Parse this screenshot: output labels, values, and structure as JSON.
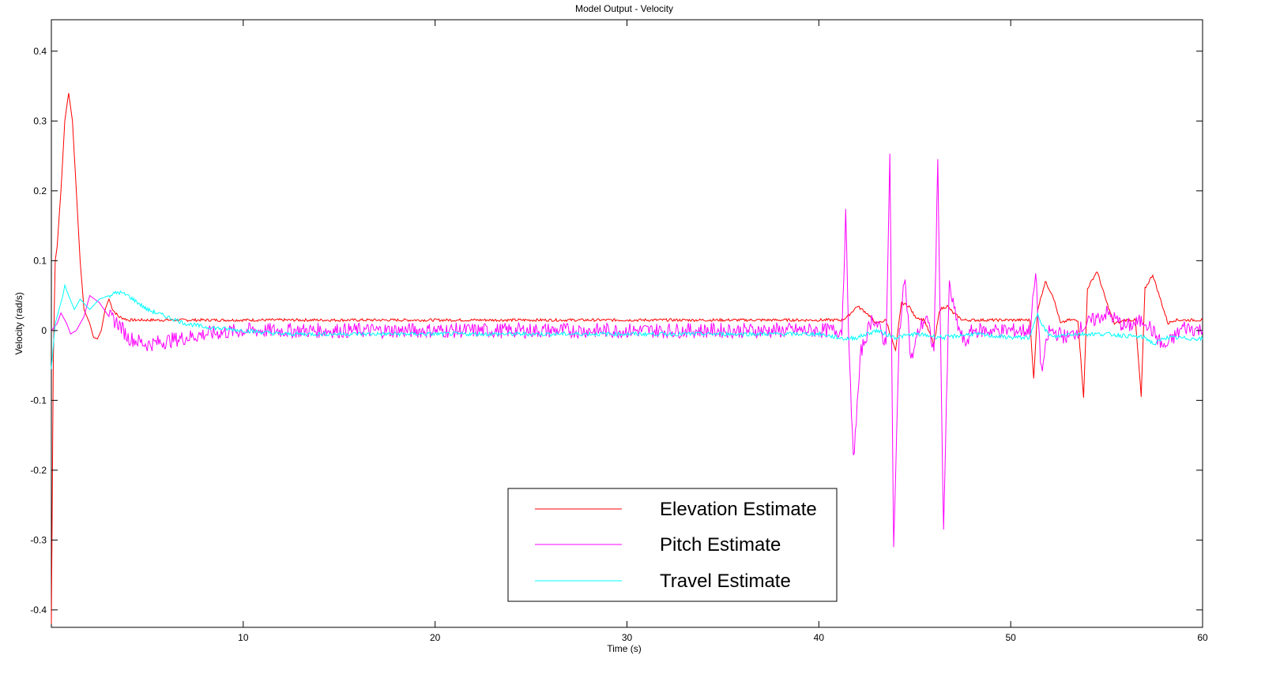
{
  "chart_data": {
    "type": "line",
    "title": "Model Output - Velocity",
    "xlabel": "Time (s)",
    "ylabel": "Velocity (rad/s)",
    "xlim": [
      0,
      60
    ],
    "ylim": [
      -0.425,
      0.445
    ],
    "xticks": [
      10,
      20,
      30,
      40,
      50,
      60
    ],
    "xtick_labels": [
      "10",
      "20",
      "30",
      "40",
      "50",
      "60"
    ],
    "yticks": [
      0.4,
      0.3,
      0.2,
      0.1,
      0,
      -0.1,
      -0.2,
      -0.3,
      -0.4
    ],
    "ytick_labels": [
      "0.4",
      "0.3",
      "0.2",
      "0.1",
      "0",
      "-0.1",
      "-0.2",
      "-0.3",
      "-0.4"
    ],
    "grid": false,
    "legend_position": "bottom-center",
    "series": [
      {
        "name": "Elevation Estimate",
        "color": "#ff0000",
        "x": [
          0,
          0.1,
          0.2,
          0.3,
          0.5,
          0.7,
          0.9,
          1.1,
          1.3,
          1.5,
          1.7,
          2.0,
          2.2,
          2.4,
          2.6,
          2.8,
          3.0,
          3.2,
          3.5,
          4.0,
          5.0,
          6.0,
          10.0,
          20.0,
          30.0,
          40.0,
          41.2,
          41.5,
          42.0,
          42.5,
          43.0,
          43.5,
          44.0,
          44.3,
          44.7,
          45.0,
          45.5,
          46.0,
          46.3,
          46.7,
          47.0,
          47.5,
          48.0,
          49.0,
          50.0,
          51.0,
          51.2,
          51.4,
          51.8,
          52.2,
          52.6,
          53.0,
          53.5,
          53.8,
          54.0,
          54.5,
          55.0,
          55.4,
          56.0,
          56.5,
          56.8,
          57.0,
          57.4,
          57.8,
          58.2,
          58.5,
          59.0,
          60.0
        ],
        "values": [
          -0.42,
          -0.05,
          0.1,
          0.12,
          0.2,
          0.3,
          0.34,
          0.3,
          0.2,
          0.1,
          0.03,
          0.01,
          -0.01,
          -0.012,
          0.0,
          0.03,
          0.045,
          0.03,
          0.02,
          0.015,
          0.015,
          0.015,
          0.015,
          0.015,
          0.015,
          0.015,
          0.015,
          0.02,
          0.035,
          0.025,
          0.01,
          0.015,
          -0.03,
          0.04,
          0.035,
          0.02,
          0.015,
          -0.02,
          0.03,
          0.035,
          0.025,
          0.015,
          0.015,
          0.015,
          0.015,
          0.015,
          -0.07,
          0.03,
          0.07,
          0.05,
          0.01,
          0.015,
          0.015,
          -0.095,
          0.06,
          0.085,
          0.04,
          0.01,
          0.015,
          0.015,
          -0.095,
          0.06,
          0.08,
          0.045,
          0.01,
          0.015,
          0.015,
          0.015
        ]
      },
      {
        "name": "Pitch Estimate",
        "color": "#ff00ff",
        "x": [
          0,
          0.3,
          0.5,
          0.8,
          1.0,
          1.3,
          1.7,
          2.0,
          2.5,
          3.0,
          3.5,
          4.0,
          5.0,
          6.0,
          7.0,
          8.0,
          10.0,
          15.0,
          20.0,
          25.0,
          30.0,
          35.0,
          40.0,
          41.2,
          41.4,
          41.6,
          41.8,
          42.2,
          42.8,
          43.2,
          43.5,
          43.7,
          43.9,
          44.2,
          44.5,
          44.8,
          45.2,
          45.6,
          46.0,
          46.2,
          46.5,
          46.8,
          47.2,
          47.6,
          48.0,
          49.0,
          50.0,
          51.0,
          51.3,
          51.6,
          52.0,
          53.0,
          54.0,
          55.0,
          56.0,
          57.0,
          58.0,
          59.0,
          60.0
        ],
        "values": [
          0.0,
          0.01,
          0.025,
          0.01,
          -0.005,
          0.0,
          0.02,
          0.05,
          0.04,
          0.02,
          0.01,
          -0.01,
          -0.02,
          -0.015,
          -0.01,
          -0.005,
          0.0,
          0.0,
          0.0,
          0.0,
          0.0,
          0.0,
          0.0,
          0.0,
          0.165,
          -0.05,
          -0.185,
          -0.03,
          0.02,
          0.0,
          -0.02,
          0.25,
          -0.315,
          0.0,
          0.08,
          -0.045,
          0.0,
          0.02,
          -0.03,
          0.24,
          -0.285,
          0.065,
          0.01,
          -0.02,
          0.0,
          0.0,
          0.0,
          0.0,
          0.08,
          -0.06,
          0.0,
          -0.01,
          0.01,
          0.025,
          0.005,
          0.015,
          -0.025,
          0.005,
          0.0
        ]
      },
      {
        "name": "Travel Estimate",
        "color": "#00ffff",
        "x": [
          0,
          0.2,
          0.4,
          0.6,
          0.7,
          0.9,
          1.2,
          1.5,
          2.0,
          2.5,
          3.0,
          3.5,
          4.0,
          5.0,
          6.0,
          7.0,
          8.0,
          10.0,
          12.0,
          20.0,
          30.0,
          40.0,
          41.4,
          42.0,
          43.0,
          44.0,
          45.0,
          46.5,
          48.0,
          50.0,
          51.0,
          51.4,
          51.8,
          52.2,
          53.0,
          55.0,
          57.0,
          57.5,
          58.0,
          60.0
        ],
        "values": [
          -0.055,
          0.01,
          0.03,
          0.05,
          0.065,
          0.05,
          0.03,
          0.045,
          0.03,
          0.045,
          0.05,
          0.055,
          0.05,
          0.03,
          0.02,
          0.01,
          0.005,
          0.0,
          -0.005,
          -0.005,
          -0.005,
          -0.005,
          -0.012,
          -0.01,
          0.0,
          -0.01,
          -0.005,
          -0.01,
          -0.005,
          -0.01,
          -0.01,
          0.025,
          0.0,
          -0.01,
          -0.005,
          -0.005,
          -0.01,
          -0.02,
          -0.01,
          -0.012
        ]
      }
    ]
  }
}
